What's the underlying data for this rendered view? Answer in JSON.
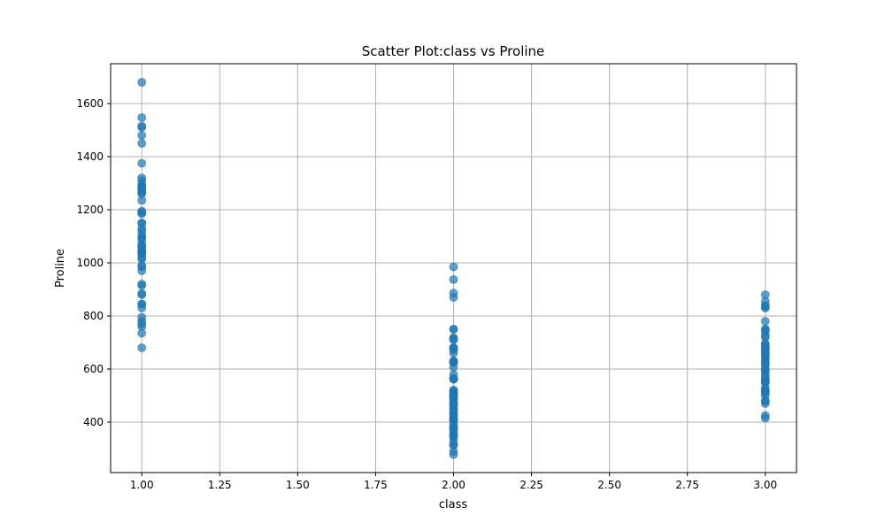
{
  "chart_data": {
    "type": "scatter",
    "title": "Scatter Plot:class vs Proline",
    "xlabel": "class",
    "ylabel": "Proline",
    "xlim": [
      0.9,
      3.1
    ],
    "ylim": [
      210,
      1750
    ],
    "xticks": [
      1.0,
      1.25,
      1.5,
      1.75,
      2.0,
      2.25,
      2.5,
      2.75,
      3.0
    ],
    "xtick_labels": [
      "1.00",
      "1.25",
      "1.50",
      "1.75",
      "2.00",
      "2.25",
      "2.50",
      "2.75",
      "3.00"
    ],
    "yticks": [
      400,
      600,
      800,
      1000,
      1200,
      1400,
      1600
    ],
    "ytick_labels": [
      "400",
      "600",
      "800",
      "1000",
      "1200",
      "1400",
      "1600"
    ],
    "grid": true,
    "marker_color": "#1f77b4",
    "marker_alpha": 0.7,
    "series": [
      {
        "x": [
          1,
          1,
          1,
          1,
          1,
          1,
          1,
          1,
          1,
          1,
          1,
          1,
          1,
          1,
          1,
          1,
          1,
          1,
          1,
          1,
          1,
          1,
          1,
          1,
          1,
          1,
          1,
          1,
          1,
          1,
          1,
          1,
          1,
          1,
          1,
          1,
          1,
          1,
          1,
          1,
          1,
          1,
          1,
          1,
          1,
          1,
          1,
          1,
          1,
          1,
          1,
          1,
          1,
          1,
          1,
          1,
          1,
          1,
          1
        ],
        "y": [
          1065,
          1050,
          1185,
          1480,
          735,
          1450,
          1290,
          1295,
          1045,
          1045,
          1510,
          1280,
          1320,
          1150,
          1547,
          1310,
          1280,
          1130,
          1680,
          845,
          780,
          770,
          1035,
          1015,
          845,
          830,
          1195,
          1285,
          915,
          1035,
          1285,
          1515,
          990,
          1235,
          1095,
          920,
          880,
          1105,
          1020,
          760,
          795,
          1035,
          1095,
          680,
          885,
          1080,
          1065,
          985,
          1060,
          1260,
          1150,
          1265,
          1190,
          1375,
          1060,
          1120,
          970,
          1270,
          1285
        ]
      },
      {
        "x": [
          2,
          2,
          2,
          2,
          2,
          2,
          2,
          2,
          2,
          2,
          2,
          2,
          2,
          2,
          2,
          2,
          2,
          2,
          2,
          2,
          2,
          2,
          2,
          2,
          2,
          2,
          2,
          2,
          2,
          2,
          2,
          2,
          2,
          2,
          2,
          2,
          2,
          2,
          2,
          2,
          2,
          2,
          2,
          2,
          2,
          2,
          2,
          2,
          2,
          2,
          2,
          2,
          2,
          2,
          2,
          2,
          2,
          2,
          2,
          2,
          2,
          2,
          2,
          2,
          2,
          2,
          2,
          2,
          2,
          2,
          2
        ],
        "y": [
          520,
          680,
          450,
          630,
          420,
          355,
          678,
          502,
          510,
          750,
          718,
          870,
          410,
          472,
          985,
          886,
          428,
          392,
          500,
          750,
          463,
          278,
          714,
          630,
          515,
          520,
          450,
          495,
          562,
          680,
          625,
          480,
          450,
          495,
          290,
          345,
          937,
          625,
          428,
          660,
          406,
          710,
          562,
          438,
          415,
          672,
          315,
          510,
          488,
          312,
          680,
          562,
          325,
          607,
          434,
          385,
          407,
          495,
          345,
          372,
          564,
          625,
          465,
          365,
          380,
          380,
          378,
          352,
          466,
          342,
          580
        ]
      },
      {
        "x": [
          3,
          3,
          3,
          3,
          3,
          3,
          3,
          3,
          3,
          3,
          3,
          3,
          3,
          3,
          3,
          3,
          3,
          3,
          3,
          3,
          3,
          3,
          3,
          3,
          3,
          3,
          3,
          3,
          3,
          3,
          3,
          3,
          3,
          3,
          3,
          3,
          3,
          3,
          3,
          3,
          3,
          3,
          3,
          3,
          3,
          3,
          3,
          3
        ],
        "y": [
          630,
          530,
          560,
          600,
          650,
          695,
          720,
          515,
          580,
          590,
          600,
          780,
          520,
          550,
          855,
          830,
          415,
          625,
          650,
          550,
          500,
          480,
          425,
          675,
          640,
          725,
          480,
          880,
          660,
          620,
          520,
          680,
          570,
          675,
          615,
          520,
          695,
          685,
          750,
          510,
          470,
          660,
          740,
          750,
          835,
          840,
          560,
          550
        ]
      }
    ]
  }
}
